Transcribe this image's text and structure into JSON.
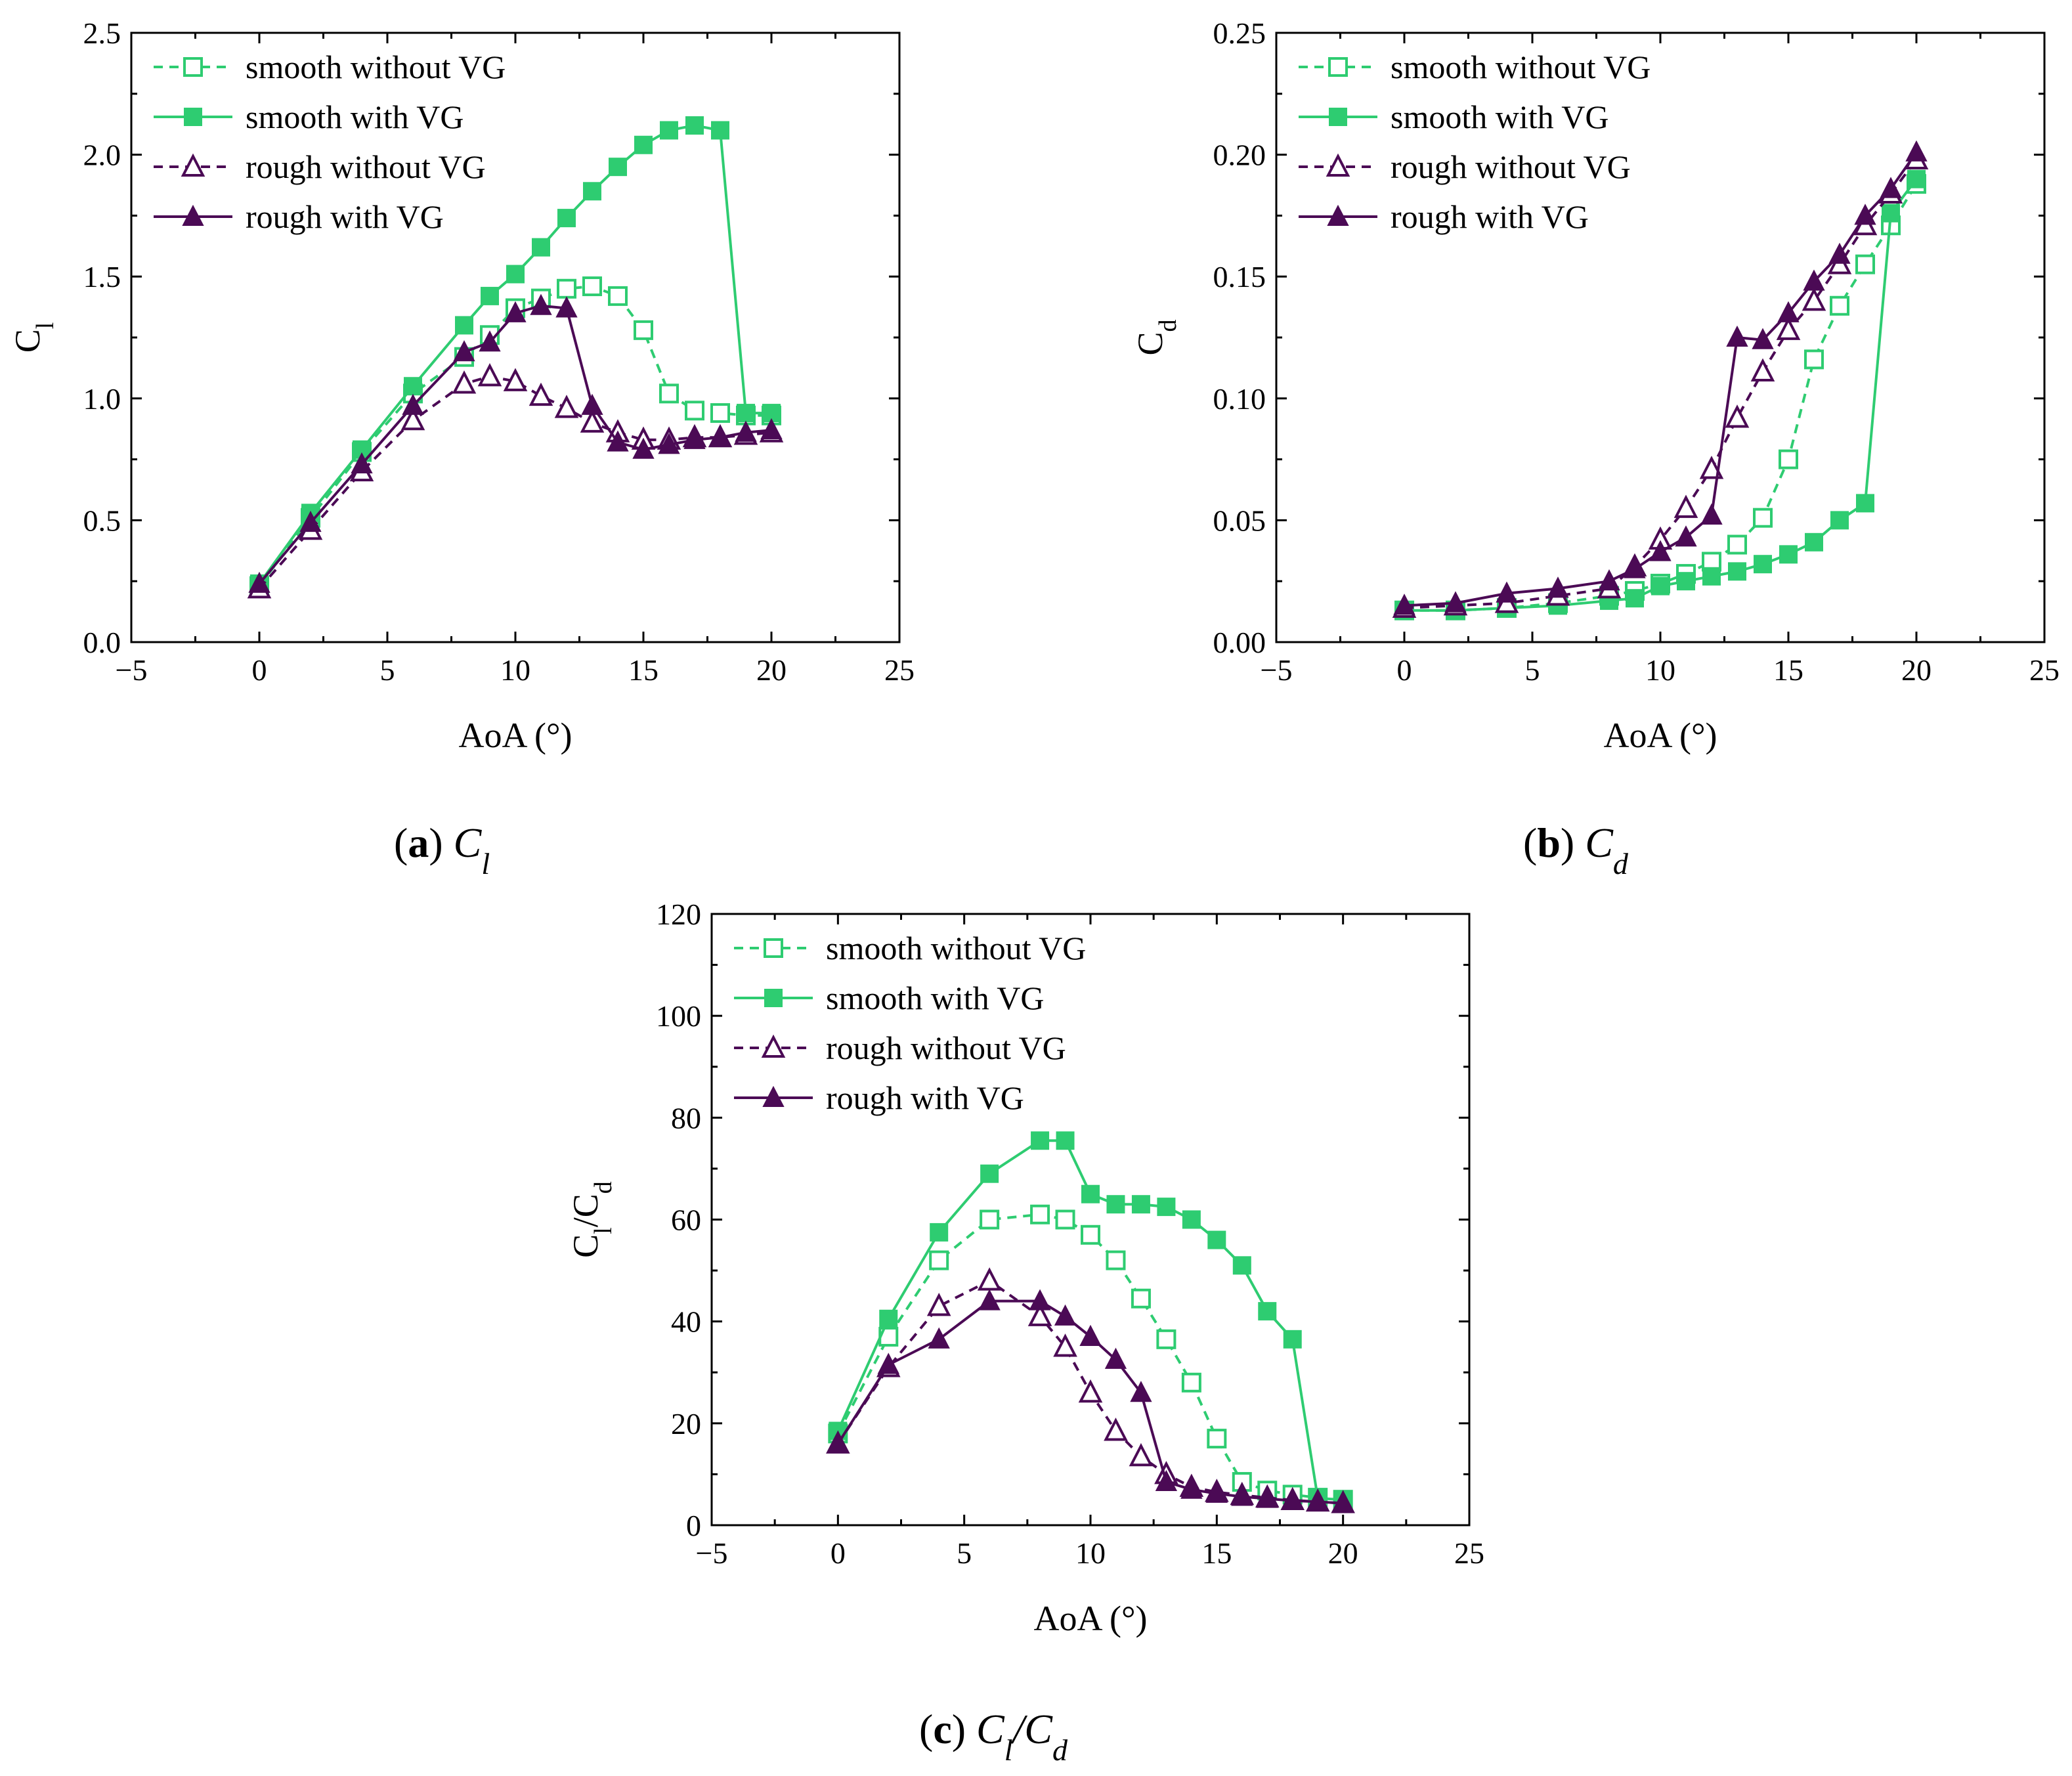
{
  "colors": {
    "green": "#2ecc71",
    "purple": "#4b0a55"
  },
  "legend_labels": [
    "smooth without VG",
    "smooth with VG",
    "rough without VG",
    "rough with VG"
  ],
  "chart_data": [
    {
      "type": "line",
      "caption_letter": "(a)",
      "caption_symbol": "C",
      "caption_sub": "l",
      "xlabel": "AoA (°)",
      "ylabel": "C",
      "ylabel_sub": "l",
      "xlim": [
        -5,
        25
      ],
      "ylim": [
        0,
        2.5
      ],
      "xticks": [
        "−5",
        "0",
        "5",
        "10",
        "15",
        "20",
        "25"
      ],
      "yticks": [
        "0.0",
        "0.5",
        "1.0",
        "1.5",
        "2.0",
        "2.5"
      ],
      "legend": "top-left",
      "series": [
        {
          "name": "smooth without VG",
          "color": "#2ecc71",
          "marker": "square-open",
          "dash": true,
          "x": [
            0,
            2,
            4,
            6,
            8,
            9,
            10,
            11,
            12,
            13,
            14,
            15,
            16,
            17,
            18,
            19,
            20
          ],
          "y": [
            0.23,
            0.51,
            0.78,
            1.02,
            1.17,
            1.26,
            1.37,
            1.41,
            1.45,
            1.46,
            1.42,
            1.28,
            1.02,
            0.95,
            0.94,
            0.93,
            0.93
          ]
        },
        {
          "name": "smooth with VG",
          "color": "#2ecc71",
          "marker": "square-filled",
          "dash": false,
          "x": [
            0,
            2,
            4,
            6,
            8,
            9,
            10,
            11,
            12,
            13,
            14,
            15,
            16,
            17,
            18,
            19,
            20
          ],
          "y": [
            0.24,
            0.53,
            0.79,
            1.05,
            1.3,
            1.42,
            1.51,
            1.62,
            1.74,
            1.85,
            1.95,
            2.04,
            2.1,
            2.12,
            2.1,
            0.94,
            0.94
          ]
        },
        {
          "name": "rough without VG",
          "color": "#4b0a55",
          "marker": "triangle-open",
          "dash": true,
          "x": [
            0,
            2,
            4,
            6,
            8,
            9,
            10,
            11,
            12,
            13,
            14,
            15,
            16,
            17,
            18,
            19,
            20
          ],
          "y": [
            0.22,
            0.46,
            0.7,
            0.91,
            1.06,
            1.09,
            1.07,
            1.01,
            0.96,
            0.9,
            0.86,
            0.83,
            0.83,
            0.84,
            0.84,
            0.85,
            0.86
          ]
        },
        {
          "name": "rough with VG",
          "color": "#4b0a55",
          "marker": "triangle-filled",
          "dash": false,
          "x": [
            0,
            2,
            4,
            6,
            8,
            9,
            10,
            11,
            12,
            13,
            14,
            15,
            16,
            17,
            18,
            19,
            20
          ],
          "y": [
            0.24,
            0.49,
            0.73,
            0.97,
            1.19,
            1.23,
            1.35,
            1.38,
            1.37,
            0.97,
            0.82,
            0.79,
            0.81,
            0.83,
            0.84,
            0.86,
            0.87
          ]
        }
      ]
    },
    {
      "type": "line",
      "caption_letter": "(b)",
      "caption_symbol": "C",
      "caption_sub": "d",
      "xlabel": "AoA (°)",
      "ylabel": "C",
      "ylabel_sub": "d",
      "xlim": [
        -5,
        25
      ],
      "ylim": [
        0,
        0.25
      ],
      "xticks": [
        "−5",
        "0",
        "5",
        "10",
        "15",
        "20",
        "25"
      ],
      "yticks": [
        "0.00",
        "0.05",
        "0.10",
        "0.15",
        "0.20",
        "0.25"
      ],
      "legend": "top-left",
      "series": [
        {
          "name": "smooth without VG",
          "color": "#2ecc71",
          "marker": "square-open",
          "dash": true,
          "x": [
            0,
            2,
            4,
            6,
            8,
            9,
            10,
            11,
            12,
            13,
            14,
            15,
            16,
            17,
            18,
            19,
            20
          ],
          "y": [
            0.013,
            0.013,
            0.014,
            0.016,
            0.019,
            0.021,
            0.024,
            0.028,
            0.033,
            0.04,
            0.051,
            0.075,
            0.116,
            0.138,
            0.155,
            0.171,
            0.188
          ]
        },
        {
          "name": "smooth with VG",
          "color": "#2ecc71",
          "marker": "square-filled",
          "dash": false,
          "x": [
            0,
            2,
            4,
            6,
            8,
            9,
            10,
            11,
            12,
            13,
            14,
            15,
            16,
            17,
            18,
            19,
            20
          ],
          "y": [
            0.013,
            0.013,
            0.014,
            0.015,
            0.017,
            0.018,
            0.023,
            0.025,
            0.027,
            0.029,
            0.032,
            0.036,
            0.041,
            0.05,
            0.057,
            0.176,
            0.19
          ]
        },
        {
          "name": "rough without VG",
          "color": "#4b0a55",
          "marker": "triangle-open",
          "dash": true,
          "x": [
            0,
            2,
            4,
            6,
            8,
            9,
            10,
            11,
            12,
            13,
            14,
            15,
            16,
            17,
            18,
            19,
            20
          ],
          "y": [
            0.014,
            0.015,
            0.016,
            0.019,
            0.022,
            0.031,
            0.042,
            0.055,
            0.071,
            0.092,
            0.111,
            0.128,
            0.14,
            0.155,
            0.171,
            0.184,
            0.198
          ]
        },
        {
          "name": "rough with VG",
          "color": "#4b0a55",
          "marker": "triangle-filled",
          "dash": false,
          "x": [
            0,
            2,
            4,
            6,
            8,
            9,
            10,
            11,
            12,
            13,
            14,
            15,
            16,
            17,
            18,
            19,
            20
          ],
          "y": [
            0.015,
            0.016,
            0.02,
            0.022,
            0.025,
            0.03,
            0.037,
            0.043,
            0.052,
            0.125,
            0.124,
            0.135,
            0.148,
            0.159,
            0.175,
            0.186,
            0.201
          ]
        }
      ]
    },
    {
      "type": "line",
      "caption_letter": "(c)",
      "caption_symbol": "C",
      "caption_sub": "l",
      "caption_symbol2": "C",
      "caption_sub2": "d",
      "xlabel": "AoA (°)",
      "ylabel": "C",
      "ylabel_sub": "l",
      "ylabel_mid": "/C",
      "ylabel_sub2": "d",
      "xlim": [
        -5,
        25
      ],
      "ylim": [
        0,
        120
      ],
      "xticks": [
        "−5",
        "0",
        "5",
        "10",
        "15",
        "20",
        "25"
      ],
      "yticks": [
        "0",
        "20",
        "40",
        "60",
        "80",
        "100",
        "120"
      ],
      "legend": "top-left",
      "series": [
        {
          "name": "smooth without VG",
          "color": "#2ecc71",
          "marker": "square-open",
          "dash": true,
          "x": [
            0,
            2,
            4,
            6,
            8,
            9,
            10,
            11,
            12,
            13,
            14,
            15,
            16,
            17,
            18,
            19,
            20
          ],
          "y": [
            18,
            37,
            52,
            60,
            61,
            60,
            57,
            52,
            44.5,
            36.5,
            28,
            17,
            8.5,
            6.8,
            6,
            5.4,
            5
          ]
        },
        {
          "name": "smooth with VG",
          "color": "#2ecc71",
          "marker": "square-filled",
          "dash": false,
          "x": [
            0,
            2,
            4,
            6,
            8,
            9,
            10,
            11,
            12,
            13,
            14,
            15,
            16,
            17,
            18,
            19,
            20
          ],
          "y": [
            18.5,
            40.5,
            57.5,
            69,
            75.5,
            75.5,
            65,
            63,
            63,
            62.5,
            60,
            56,
            51,
            42,
            36.5,
            5.3,
            5
          ]
        },
        {
          "name": "rough without VG",
          "color": "#4b0a55",
          "marker": "triangle-open",
          "dash": true,
          "x": [
            0,
            2,
            4,
            6,
            8,
            9,
            10,
            11,
            12,
            13,
            14,
            15,
            16,
            17,
            18,
            19,
            20
          ],
          "y": [
            16,
            31,
            43,
            48,
            41,
            35,
            26,
            18.5,
            13.5,
            10,
            7.5,
            6.5,
            5.9,
            5.4,
            4.9,
            4.6,
            4.3
          ]
        },
        {
          "name": "rough with VG",
          "color": "#4b0a55",
          "marker": "triangle-filled",
          "dash": false,
          "x": [
            0,
            2,
            4,
            6,
            8,
            9,
            10,
            11,
            12,
            13,
            14,
            15,
            16,
            17,
            18,
            19,
            20
          ],
          "y": [
            16,
            31.5,
            36.5,
            44,
            44,
            41,
            37,
            32.5,
            26,
            8.5,
            7,
            6.2,
            5.6,
            5.2,
            4.8,
            4.6,
            4.3
          ]
        }
      ]
    }
  ]
}
